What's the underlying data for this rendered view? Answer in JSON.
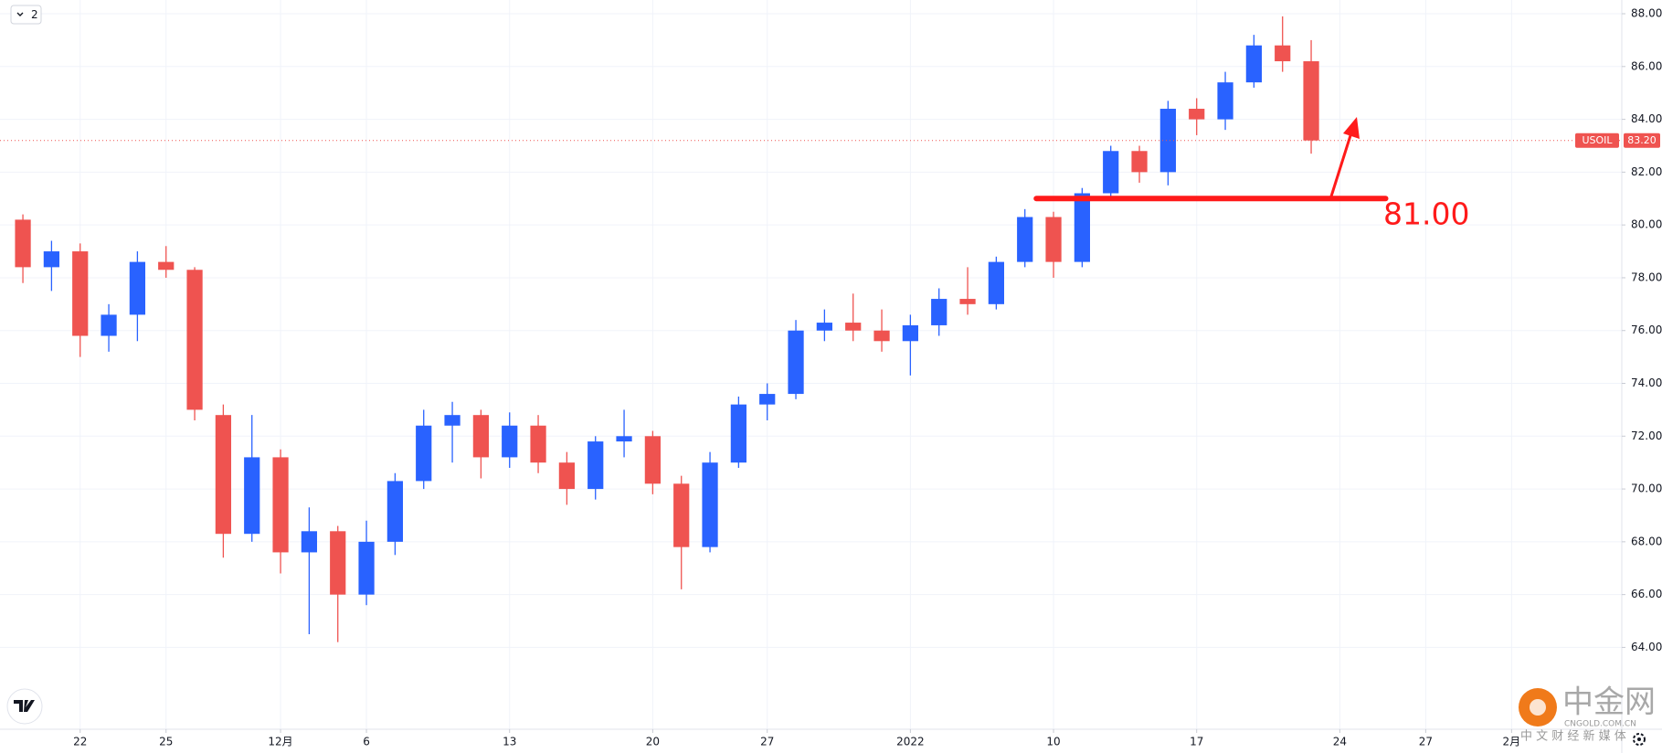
{
  "chart_data": {
    "type": "candlestick",
    "symbol": "USOIL",
    "last_price": {
      "value": 83.2,
      "label": "83.20"
    },
    "colors": {
      "up": "#2962ff",
      "down": "#ef5350"
    },
    "grid": true,
    "xlim": [
      -2.8,
      53.85
    ],
    "ylim": [
      60.9,
      88.52
    ],
    "xticks": [
      {
        "value": 0,
        "label": "22"
      },
      {
        "value": 3,
        "label": "25"
      },
      {
        "value": 7,
        "label": "12月"
      },
      {
        "value": 10,
        "label": "6"
      },
      {
        "value": 15,
        "label": "13"
      },
      {
        "value": 20,
        "label": "20"
      },
      {
        "value": 24,
        "label": "27"
      },
      {
        "value": 29,
        "label": "2022"
      },
      {
        "value": 34,
        "label": "10"
      },
      {
        "value": 39,
        "label": "17"
      },
      {
        "value": 44,
        "label": "24"
      },
      {
        "value": 47,
        "label": "27"
      },
      {
        "value": 50,
        "label": "2月"
      }
    ],
    "yticks": [
      {
        "value": 64,
        "label": "64.00"
      },
      {
        "value": 66,
        "label": "66.00"
      },
      {
        "value": 68,
        "label": "68.00"
      },
      {
        "value": 70,
        "label": "70.00"
      },
      {
        "value": 72,
        "label": "72.00"
      },
      {
        "value": 74,
        "label": "74.00"
      },
      {
        "value": 76,
        "label": "76.00"
      },
      {
        "value": 78,
        "label": "78.00"
      },
      {
        "value": 80,
        "label": "80.00"
      },
      {
        "value": 82,
        "label": "82.00"
      },
      {
        "value": 84,
        "label": "84.00"
      },
      {
        "value": 86,
        "label": "86.00"
      },
      {
        "value": 88,
        "label": "88.00"
      }
    ],
    "x": [
      -2,
      -1,
      0,
      1,
      2,
      3,
      4,
      5,
      6,
      7,
      8,
      9,
      10,
      11,
      12,
      13,
      14,
      15,
      16,
      17,
      18,
      19,
      20,
      21,
      22,
      23,
      24,
      25,
      26,
      27,
      28,
      29,
      30,
      31,
      32,
      33,
      34,
      35,
      36,
      37,
      38,
      39,
      40,
      41,
      42,
      43
    ],
    "open": [
      80.2,
      78.4,
      79.0,
      75.8,
      76.6,
      78.6,
      78.3,
      72.8,
      68.3,
      71.2,
      67.6,
      68.4,
      66.0,
      68.0,
      70.3,
      72.4,
      72.8,
      71.2,
      72.4,
      71.0,
      70.0,
      71.8,
      72.0,
      70.2,
      67.8,
      71.0,
      73.2,
      73.6,
      76.0,
      76.3,
      76.0,
      75.6,
      76.2,
      77.2,
      77.0,
      78.6,
      80.3,
      78.6,
      81.2,
      82.8,
      82.0,
      84.4,
      84.0,
      85.4,
      86.8,
      86.2
    ],
    "high": [
      80.4,
      79.4,
      79.3,
      77.0,
      79.0,
      79.2,
      78.4,
      73.2,
      72.8,
      71.5,
      69.3,
      68.6,
      68.8,
      70.6,
      73.0,
      73.3,
      73.0,
      72.9,
      72.8,
      71.4,
      72.0,
      73.0,
      72.2,
      70.5,
      71.4,
      73.5,
      74.0,
      76.4,
      76.8,
      77.4,
      76.8,
      76.6,
      77.6,
      78.4,
      78.8,
      80.6,
      80.5,
      81.4,
      83.0,
      83.0,
      84.7,
      84.8,
      85.8,
      87.2,
      87.9,
      87.0
    ],
    "low": [
      77.8,
      77.5,
      75.0,
      75.2,
      75.6,
      78.0,
      72.6,
      67.4,
      68.0,
      66.8,
      64.5,
      64.2,
      65.6,
      67.5,
      70.0,
      71.0,
      70.4,
      70.8,
      70.6,
      69.4,
      69.6,
      71.2,
      69.8,
      66.2,
      67.6,
      70.8,
      72.6,
      73.4,
      75.6,
      75.6,
      75.2,
      74.3,
      75.8,
      76.6,
      76.8,
      78.4,
      78.0,
      78.4,
      81.0,
      81.6,
      81.5,
      83.4,
      83.6,
      85.2,
      85.8,
      82.7
    ],
    "close": [
      78.4,
      79.0,
      75.8,
      76.6,
      78.6,
      78.3,
      73.0,
      68.3,
      71.2,
      67.6,
      68.4,
      66.0,
      68.0,
      70.3,
      72.4,
      72.8,
      71.2,
      72.4,
      71.0,
      70.0,
      71.8,
      72.0,
      70.2,
      67.8,
      71.0,
      73.2,
      73.6,
      76.0,
      76.3,
      76.0,
      75.6,
      76.2,
      77.2,
      77.0,
      78.6,
      80.3,
      78.6,
      81.2,
      82.8,
      82.0,
      84.4,
      84.0,
      85.4,
      86.8,
      86.2,
      83.2
    ],
    "annotation": {
      "value": 81,
      "label": "81.00",
      "x_start": 33.4,
      "x_end": 45.6,
      "color": "#ff1a1a"
    }
  },
  "ui": {
    "interval_button": "2",
    "watermark": {
      "brand": "中金网",
      "domain": "CNGOLD.COM.CN",
      "tagline": "中 文 财 经 新 媒 体"
    }
  }
}
